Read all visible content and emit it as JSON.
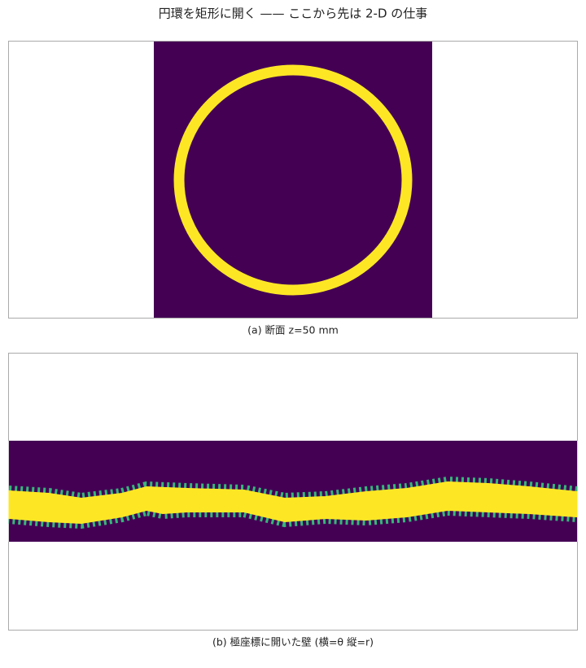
{
  "figure": {
    "title": "円環を矩形に開く —— ここから先は 2-D の仕事"
  },
  "panels": [
    {
      "caption": "(a) 断面 z=50 mm"
    },
    {
      "caption": "(b) 極座標に開いた壁 (横=θ 縦=r)"
    }
  ]
}
